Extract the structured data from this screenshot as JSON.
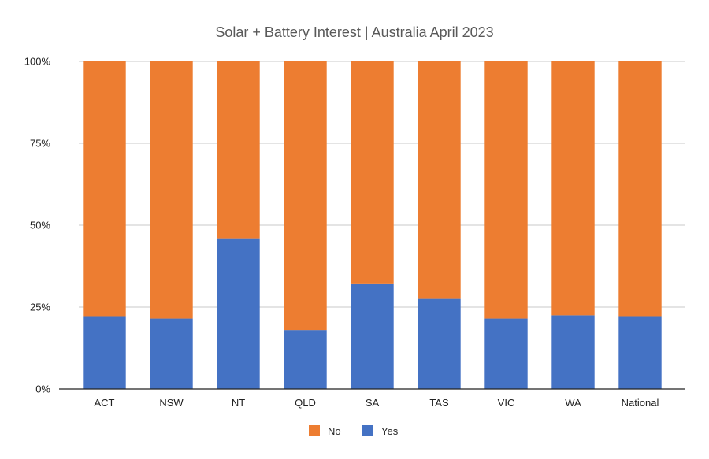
{
  "chart_data": {
    "type": "bar",
    "stacked": true,
    "percent_scale": true,
    "title": "Solar + Battery Interest | Australia April 2023",
    "xlabel": "",
    "ylabel": "",
    "categories": [
      "ACT",
      "NSW",
      "NT",
      "QLD",
      "SA",
      "TAS",
      "VIC",
      "WA",
      "National"
    ],
    "series": [
      {
        "name": "Yes",
        "color": "#4472C4",
        "values": [
          22,
          21.5,
          46,
          18,
          32,
          27.5,
          21.5,
          22.5,
          22
        ]
      },
      {
        "name": "No",
        "color": "#ED7D31",
        "values": [
          78,
          78.5,
          54,
          82,
          68,
          72.5,
          78.5,
          77.5,
          78
        ]
      }
    ],
    "ylim": [
      0,
      100
    ],
    "yticks": [
      0,
      25,
      50,
      75,
      100
    ],
    "ytick_labels": [
      "0%",
      "25%",
      "50%",
      "75%",
      "100%"
    ],
    "grid": true,
    "legend": {
      "position": "bottom",
      "entries": [
        "No",
        "Yes"
      ]
    }
  }
}
